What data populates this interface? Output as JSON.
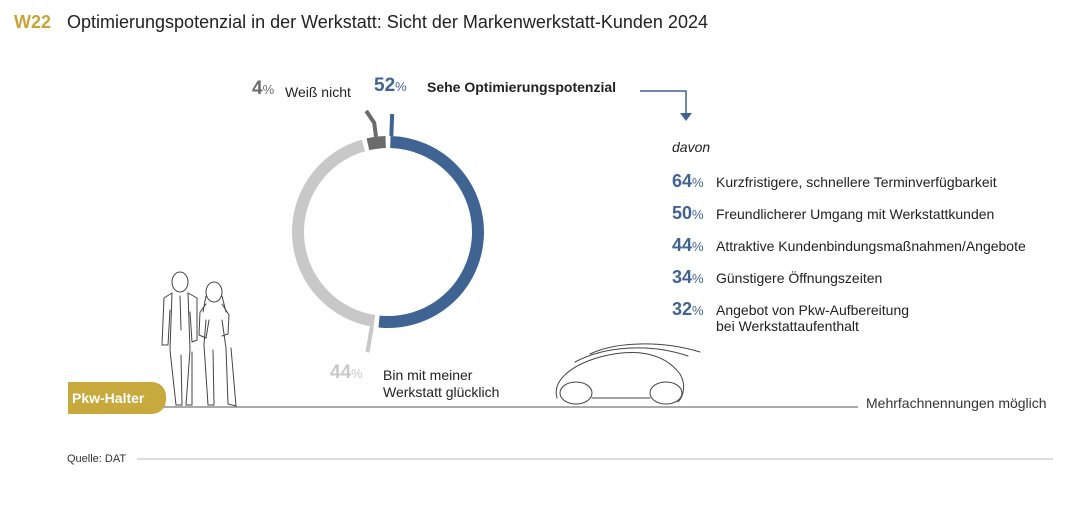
{
  "header": {
    "code": "W22",
    "title": "Optimierungspotenzial in der Werkstatt: Sicht der Markenwerkstatt-Kunden 2024"
  },
  "chart_data": [
    {
      "type": "pie",
      "style": "donut",
      "slices": [
        {
          "pct_value": "52",
          "pct_sign": "%",
          "label": "Sehe Optimierungspotenzial",
          "value": 52,
          "color": "#3f6493"
        },
        {
          "pct_value": "44",
          "pct_sign": "%",
          "label_line1": "Bin mit meiner",
          "label_line2": "Werkstatt glücklich",
          "value": 44,
          "color": "#c8c8c8"
        },
        {
          "pct_value": "4",
          "pct_sign": "%",
          "label": "Weiß nicht",
          "value": 4,
          "color": "#6b6b6b"
        }
      ]
    },
    {
      "type": "bar",
      "intro": "davon",
      "items": [
        {
          "pct_value": "64",
          "pct_sign": "%",
          "line1": "Kurzfristigere, schnellere Terminverfügbarkeit",
          "line2": "",
          "value": 64
        },
        {
          "pct_value": "50",
          "pct_sign": "%",
          "line1": "Freundlicherer Umgang mit Werkstattkunden",
          "line2": "",
          "value": 50
        },
        {
          "pct_value": "44",
          "pct_sign": "%",
          "line1": "Attraktive Kundenbindungsmaßnahmen/Angebote",
          "line2": "",
          "value": 44
        },
        {
          "pct_value": "34",
          "pct_sign": "%",
          "line1": "Günstigere Öffnungszeiten",
          "line2": "",
          "value": 34
        },
        {
          "pct_value": "32",
          "pct_sign": "%",
          "line1": "Angebot von Pkw-Aufbereitung",
          "line2": "bei Werkstattaufenthalt",
          "value": 32
        }
      ]
    }
  ],
  "badge": "Pkw-Halter",
  "note": "Mehrfachnennungen möglich",
  "source": "Quelle: DAT"
}
